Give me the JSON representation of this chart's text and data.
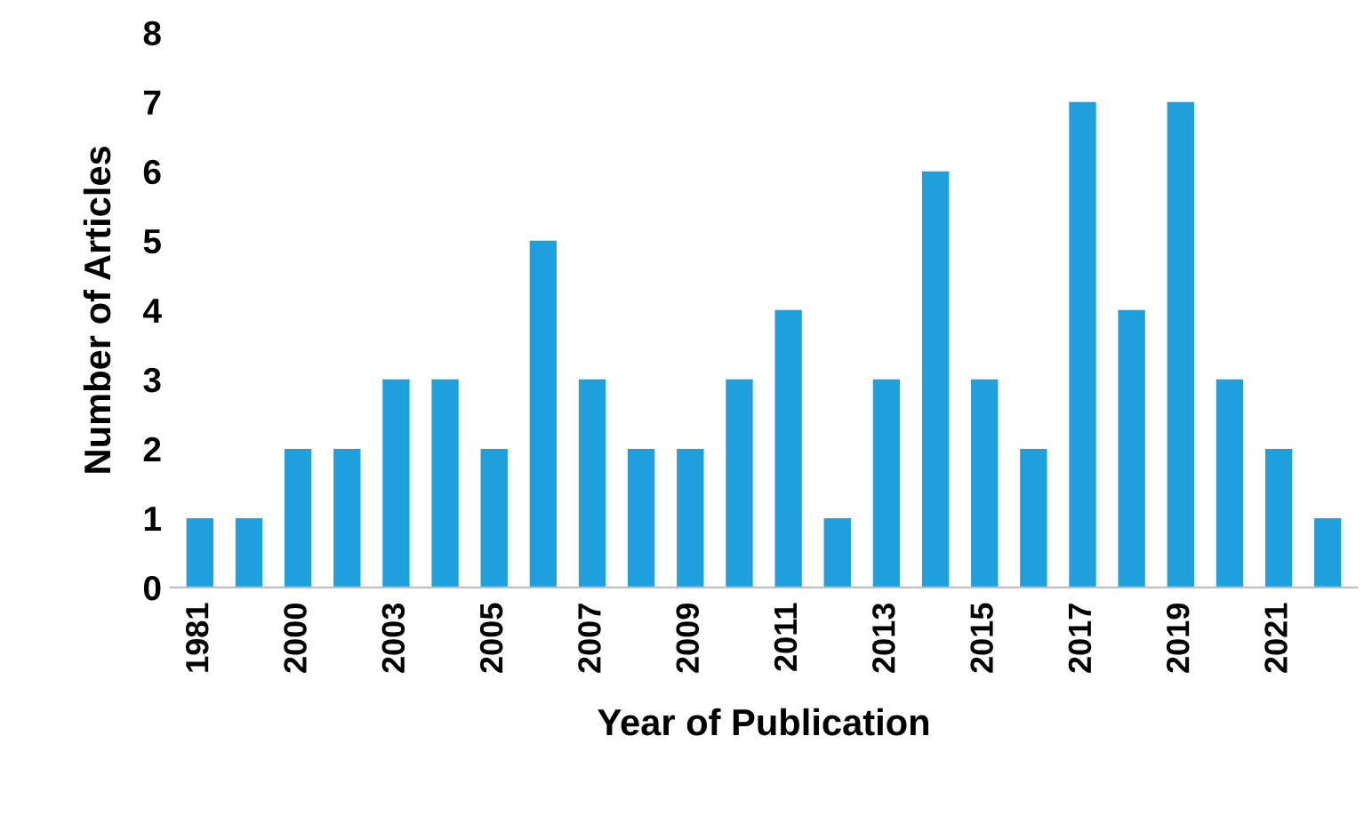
{
  "chart_data": {
    "type": "bar",
    "xlabel": "Year of Publication",
    "ylabel": "Number of Articles",
    "categories": [
      "1981",
      null,
      "2000",
      null,
      "2003",
      null,
      "2005",
      null,
      "2007",
      null,
      "2009",
      null,
      "2011",
      null,
      "2013",
      null,
      "2015",
      null,
      "2017",
      null,
      "2019",
      null,
      "2021",
      null
    ],
    "values": [
      1,
      1,
      2,
      2,
      3,
      3,
      2,
      5,
      3,
      2,
      2,
      3,
      4,
      1,
      3,
      6,
      3,
      2,
      7,
      4,
      7,
      3,
      2,
      1
    ],
    "color": "#1f9fdc",
    "ylim": [
      0,
      8
    ],
    "yticks": [
      0,
      1,
      2,
      3,
      4,
      5,
      6,
      7,
      8
    ],
    "grid": false,
    "legend": false
  }
}
